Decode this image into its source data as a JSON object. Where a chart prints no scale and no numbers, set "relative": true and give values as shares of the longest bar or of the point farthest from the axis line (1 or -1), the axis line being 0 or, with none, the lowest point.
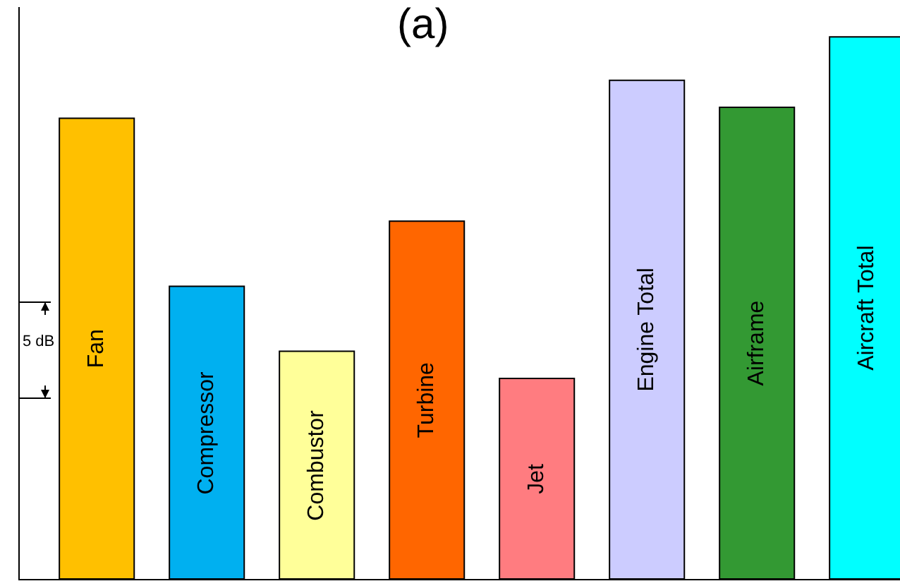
{
  "chart_data": {
    "type": "bar",
    "title": "(a)",
    "relative": true,
    "tick_labels": false,
    "grid": false,
    "legend": false,
    "categories": [
      "Fan",
      "Compressor",
      "Combustor",
      "Turbine",
      "Jet",
      "Engine Total",
      "Airframe",
      "Aircraft Total"
    ],
    "values": [
      0.85,
      0.54,
      0.42,
      0.66,
      0.37,
      0.92,
      0.87,
      1
    ],
    "colors": [
      "#ffc000",
      "#00b0f0",
      "#ffff99",
      "#ff6600",
      "#ff7c80",
      "#ccccff",
      "#339933",
      "#00ffff"
    ],
    "annotations": [
      "5 dB"
    ]
  }
}
